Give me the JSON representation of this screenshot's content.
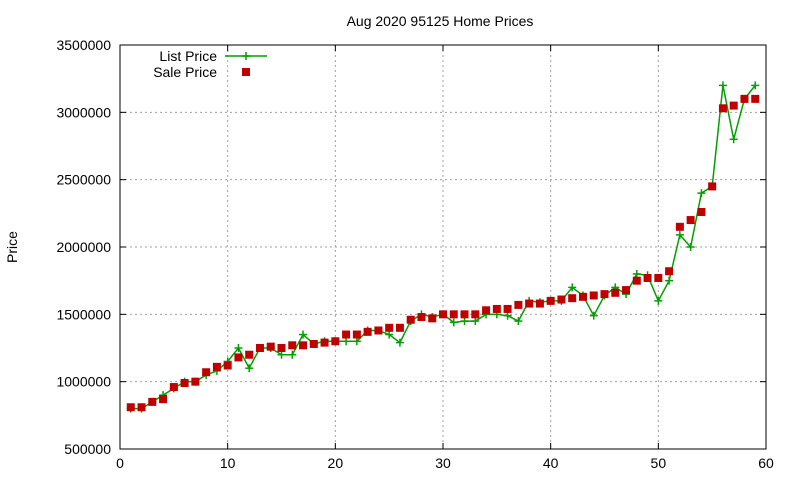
{
  "chart_data": {
    "type": "line",
    "title": "Aug 2020 95125 Home Prices",
    "xlabel": "",
    "ylabel": "Price",
    "xlim": [
      0,
      60
    ],
    "ylim": [
      500000,
      3500000
    ],
    "xticks": [
      0,
      10,
      20,
      30,
      40,
      50,
      60
    ],
    "yticks": [
      500000,
      1000000,
      1500000,
      2000000,
      2500000,
      3000000,
      3500000
    ],
    "grid": true,
    "legend_position": "top-left",
    "series": [
      {
        "name": "List Price",
        "style": "line+cross",
        "color": "#00a000",
        "x": [
          1,
          2,
          3,
          4,
          5,
          6,
          7,
          8,
          9,
          10,
          11,
          12,
          13,
          14,
          15,
          16,
          17,
          18,
          19,
          20,
          21,
          22,
          23,
          24,
          25,
          26,
          27,
          28,
          29,
          30,
          31,
          32,
          33,
          34,
          35,
          36,
          37,
          38,
          39,
          40,
          41,
          42,
          43,
          44,
          45,
          46,
          47,
          48,
          49,
          50,
          51,
          52,
          53,
          54,
          55,
          56,
          57,
          58,
          59
        ],
        "values": [
          800000,
          800000,
          850000,
          900000,
          950000,
          1000000,
          1000000,
          1050000,
          1080000,
          1150000,
          1250000,
          1100000,
          1250000,
          1250000,
          1200000,
          1200000,
          1350000,
          1280000,
          1300000,
          1300000,
          1300000,
          1300000,
          1380000,
          1380000,
          1350000,
          1290000,
          1450000,
          1500000,
          1480000,
          1500000,
          1440000,
          1450000,
          1450000,
          1500000,
          1500000,
          1490000,
          1450000,
          1600000,
          1590000,
          1600000,
          1600000,
          1700000,
          1640000,
          1490000,
          1640000,
          1700000,
          1650000,
          1800000,
          1790000,
          1600000,
          1750000,
          2090000,
          2000000,
          2400000,
          2450000,
          3200000,
          2800000,
          3100000,
          3200000
        ]
      },
      {
        "name": "Sale Price",
        "style": "square",
        "color": "#c00000",
        "x": [
          1,
          2,
          3,
          4,
          5,
          6,
          7,
          8,
          9,
          10,
          11,
          12,
          13,
          14,
          15,
          16,
          17,
          18,
          19,
          20,
          21,
          22,
          23,
          24,
          25,
          26,
          27,
          28,
          29,
          30,
          31,
          32,
          33,
          34,
          35,
          36,
          37,
          38,
          39,
          40,
          41,
          42,
          43,
          44,
          45,
          46,
          47,
          48,
          49,
          50,
          51,
          52,
          53,
          54,
          55,
          56,
          57,
          58,
          59
        ],
        "values": [
          810000,
          810000,
          850000,
          870000,
          960000,
          990000,
          1000000,
          1070000,
          1110000,
          1120000,
          1180000,
          1200000,
          1250000,
          1260000,
          1250000,
          1270000,
          1270000,
          1280000,
          1290000,
          1300000,
          1350000,
          1350000,
          1370000,
          1380000,
          1400000,
          1400000,
          1460000,
          1480000,
          1470000,
          1500000,
          1500000,
          1500000,
          1500000,
          1530000,
          1540000,
          1540000,
          1570000,
          1580000,
          1580000,
          1600000,
          1610000,
          1620000,
          1630000,
          1640000,
          1650000,
          1660000,
          1680000,
          1750000,
          1770000,
          1770000,
          1820000,
          2150000,
          2200000,
          2260000,
          2450000,
          3030000,
          3050000,
          3100000,
          3100000
        ]
      }
    ]
  }
}
